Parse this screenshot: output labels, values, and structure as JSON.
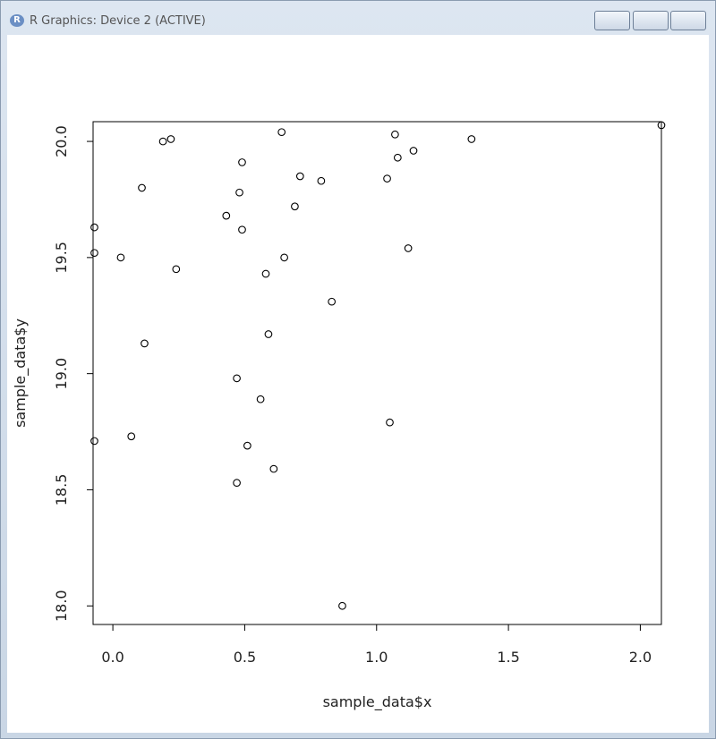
{
  "window": {
    "title": "R Graphics: Device 2 (ACTIVE)"
  },
  "chart_data": {
    "type": "scatter",
    "x_label": "sample_data$x",
    "y_label": "sample_data$y",
    "x": [
      0.19,
      0.22,
      0.64,
      1.07,
      1.36,
      2.08,
      1.14,
      1.08,
      0.49,
      0.71,
      0.79,
      1.04,
      0.11,
      0.48,
      0.69,
      0.43,
      -0.07,
      0.49,
      -0.07,
      0.03,
      1.12,
      0.65,
      0.24,
      0.58,
      0.83,
      0.59,
      0.12,
      0.47,
      0.56,
      1.05,
      0.07,
      -0.07,
      0.51,
      0.61,
      0.47,
      0.87
    ],
    "y": [
      20.0,
      20.01,
      20.04,
      20.03,
      20.01,
      20.07,
      19.96,
      19.93,
      19.91,
      19.85,
      19.83,
      19.84,
      19.8,
      19.78,
      19.72,
      19.68,
      19.63,
      19.62,
      19.52,
      19.5,
      19.54,
      19.5,
      19.45,
      19.43,
      19.31,
      19.17,
      19.13,
      18.98,
      18.89,
      18.79,
      18.73,
      18.71,
      18.69,
      18.59,
      18.53,
      18.0
    ],
    "color": "#000000",
    "xlim": [
      -0.075,
      2.08
    ],
    "ylim": [
      17.92,
      20.085
    ],
    "xticks": [
      {
        "value": 0,
        "label": "0.0"
      },
      0.5,
      {
        "value": 1,
        "label": "1.0"
      },
      1.5,
      {
        "value": 2,
        "label": "2.0"
      }
    ],
    "yticks": [
      {
        "value": 18,
        "label": "18.0"
      },
      18.5,
      {
        "value": 19,
        "label": "19.0"
      },
      19.5,
      {
        "value": 20,
        "label": "20.0"
      }
    ]
  }
}
